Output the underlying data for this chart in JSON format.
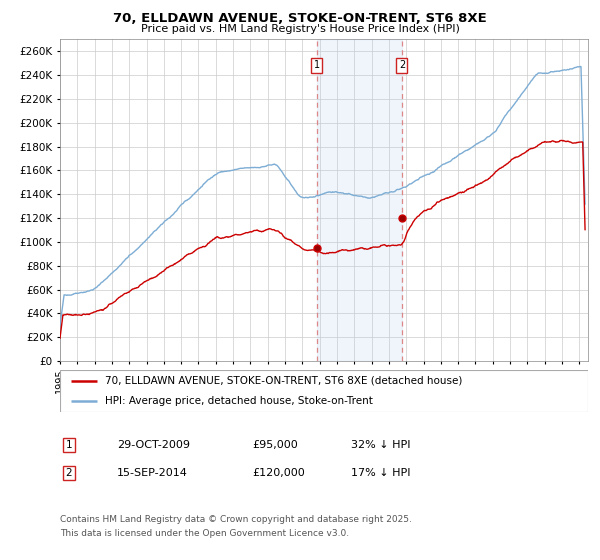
{
  "title_line1": "70, ELLDAWN AVENUE, STOKE-ON-TRENT, ST6 8XE",
  "title_line2": "Price paid vs. HM Land Registry's House Price Index (HPI)",
  "background_color": "#ffffff",
  "plot_background": "#ffffff",
  "grid_color": "#cccccc",
  "hpi_color": "#7dadd4",
  "price_color": "#cc0000",
  "shading_color": "#ddeeff",
  "dashed_line_color": "#dd6666",
  "legend_label_price": "70, ELLDAWN AVENUE, STOKE-ON-TRENT, ST6 8XE (detached house)",
  "legend_label_hpi": "HPI: Average price, detached house, Stoke-on-Trent",
  "purchase1_date": "29-OCT-2009",
  "purchase1_price": 95000,
  "purchase1_hpi_diff": "32% ↓ HPI",
  "purchase2_date": "15-SEP-2014",
  "purchase2_price": 120000,
  "purchase2_hpi_diff": "17% ↓ HPI",
  "footer": "Contains HM Land Registry data © Crown copyright and database right 2025.\nThis data is licensed under the Open Government Licence v3.0.",
  "ylim_max": 270000,
  "yticks": [
    0,
    20000,
    40000,
    60000,
    80000,
    100000,
    120000,
    140000,
    160000,
    180000,
    200000,
    220000,
    240000,
    260000
  ]
}
